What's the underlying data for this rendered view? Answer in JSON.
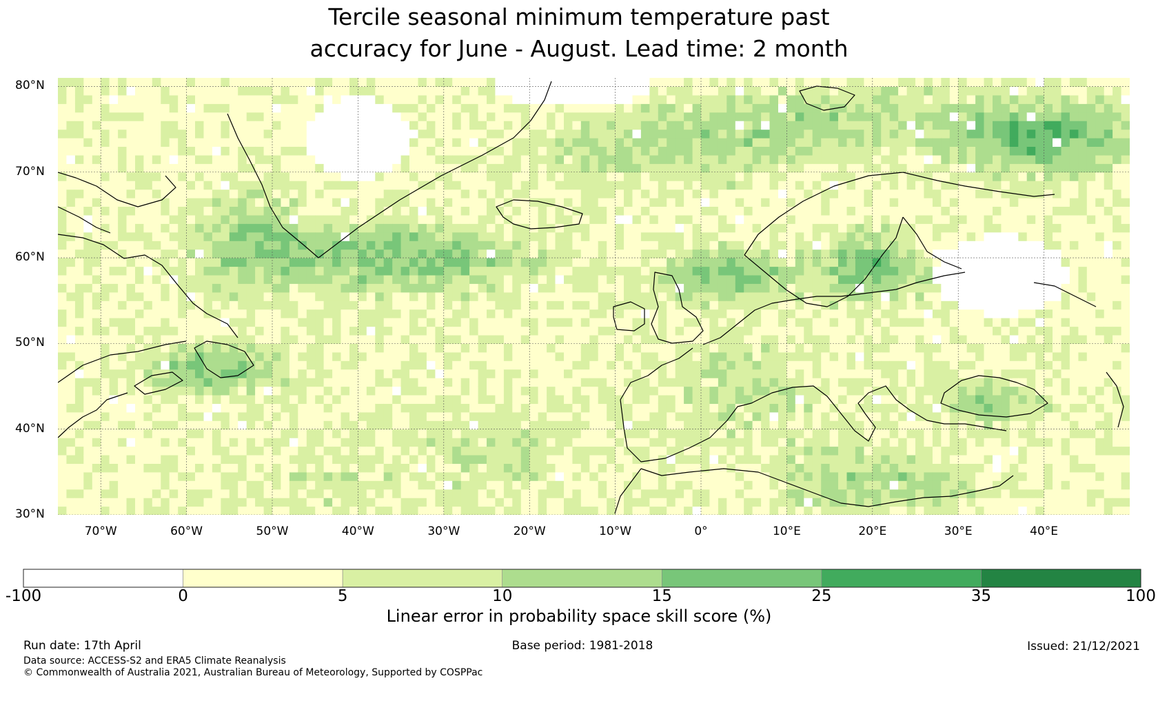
{
  "title": {
    "line1": "Tercile seasonal minimum temperature past",
    "line2": "accuracy for June - August. Lead time: 2 month"
  },
  "map": {
    "extent_lon": [
      -75,
      50
    ],
    "extent_lat": [
      30,
      81
    ],
    "lat_labels": [
      "80°N",
      "70°N",
      "60°N",
      "50°N",
      "40°N",
      "30°N"
    ],
    "lon_labels": [
      "70°W",
      "60°W",
      "50°W",
      "40°W",
      "30°W",
      "20°W",
      "10°W",
      "0°",
      "10°E",
      "20°E",
      "30°E",
      "40°E"
    ],
    "gridlines": true,
    "coastline_color": "#000000"
  },
  "colorbar": {
    "ticks": [
      "-100",
      "0",
      "5",
      "10",
      "15",
      "25",
      "35",
      "100"
    ],
    "colors": [
      "#ffffff",
      "#ffffcc",
      "#d9f0a3",
      "#addd8e",
      "#78c679",
      "#41ab5d",
      "#238443"
    ],
    "label": "Linear error in probability space skill score (%)"
  },
  "footer": {
    "run_date": "Run date: 17th April",
    "base_period": "Base period: 1981-2018",
    "issued": "Issued: 21/12/2021",
    "data_source": "Data source: ACCESS-S2 and ERA5 Climate Reanalysis",
    "copyright": "© Commonwealth of Australia 2021, Australian Bureau of Meteorology, Supported by COSPPac"
  }
}
